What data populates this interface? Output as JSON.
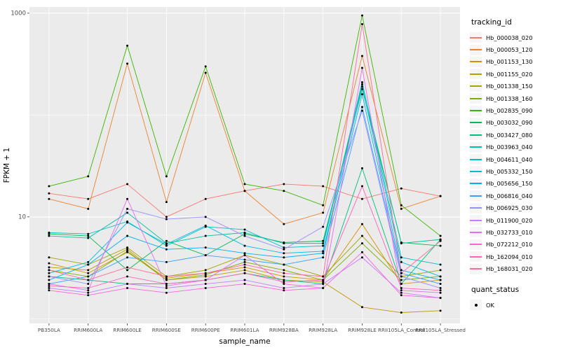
{
  "figure": {
    "background": "#FFFFFF",
    "panel_background": "#EBEBEB",
    "grid_color": "#FFFFFF",
    "tick_color": "#333333",
    "tick_label_color": "#4D4D4D"
  },
  "chart_data": {
    "type": "line",
    "title": "",
    "xlabel": "sample_name",
    "ylabel": "FPKM + 1",
    "y_scale": "log10",
    "ylim": [
      0.9,
      1150
    ],
    "y_ticks": [
      10,
      1000
    ],
    "y_tick_labels": [
      "10",
      "1000"
    ],
    "y_minor_ticks": [
      1,
      100
    ],
    "grid": true,
    "legend_title": "tracking_id",
    "legend_position": "right",
    "point_color": "#000000",
    "categories": [
      "PB350LA",
      "RRIM600LA",
      "RRIM600LE",
      "RRIM600SE",
      "RRIM600PE",
      "RRIM601LA",
      "RRIM928BA",
      "RRIM928LA",
      "RRIM928LE",
      "RRII105LA_Control",
      "RRII105LA_Stressed"
    ],
    "series": [
      {
        "name": "Hb_000038_020",
        "color": "#F8766D",
        "values": [
          17,
          15,
          21,
          10,
          15,
          18,
          21,
          20,
          15,
          19,
          16
        ]
      },
      {
        "name": "Hb_000053_120",
        "color": "#EA8331",
        "values": [
          15,
          12,
          320,
          14,
          260,
          18,
          8.5,
          11,
          380,
          12,
          16
        ]
      },
      {
        "name": "Hb_001153_130",
        "color": "#D89000",
        "values": [
          3.5,
          2.8,
          4.5,
          2.5,
          2.8,
          3.2,
          2.6,
          2.4,
          8.5,
          2.2,
          2.4
        ]
      },
      {
        "name": "Hb_001155_020",
        "color": "#C09B00",
        "values": [
          3.2,
          3.0,
          4.8,
          2.4,
          2.6,
          3.0,
          2.4,
          2.3,
          1.3,
          1.15,
          1.2
        ]
      },
      {
        "name": "Hb_001338_150",
        "color": "#A3A500",
        "values": [
          4.0,
          3.4,
          5.0,
          2.6,
          3.0,
          4.2,
          3.4,
          2.6,
          6.5,
          2.6,
          3.0
        ]
      },
      {
        "name": "Hb_001338_160",
        "color": "#7CAE00",
        "values": [
          3.0,
          2.6,
          4.6,
          2.4,
          2.7,
          3.6,
          3.0,
          2.4,
          5.5,
          2.4,
          2.6
        ]
      },
      {
        "name": "Hb_002835_090",
        "color": "#39B600",
        "values": [
          20,
          25,
          480,
          25,
          300,
          21,
          18,
          13,
          950,
          13,
          6.5
        ]
      },
      {
        "name": "Hb_003032_090",
        "color": "#00BB4E",
        "values": [
          6.8,
          6.5,
          3.0,
          5.8,
          4.2,
          6.8,
          5.6,
          5.8,
          180,
          5.6,
          5.2
        ]
      },
      {
        "name": "Hb_003427_080",
        "color": "#00BF7D",
        "values": [
          2.6,
          2.4,
          2.2,
          2.2,
          2.4,
          2.8,
          2.4,
          2.2,
          30,
          2.2,
          6.0
        ]
      },
      {
        "name": "Hb_003963_040",
        "color": "#00C1A3",
        "values": [
          6.5,
          6.2,
          11,
          5.5,
          6.5,
          7.0,
          5.5,
          5.5,
          200,
          5.5,
          6.0
        ]
      },
      {
        "name": "Hb_004611_040",
        "color": "#00BFC4",
        "values": [
          7.0,
          6.8,
          9.0,
          5.2,
          8.0,
          7.5,
          5.0,
          5.2,
          210,
          4.0,
          3.4
        ]
      },
      {
        "name": "Hb_005332_150",
        "color": "#00BAE0",
        "values": [
          2.8,
          3.6,
          8.8,
          5.4,
          8.2,
          5.2,
          4.4,
          4.6,
          190,
          3.6,
          2.6
        ]
      },
      {
        "name": "Hb_005656_150",
        "color": "#00B0F6",
        "values": [
          2.4,
          3.4,
          6.5,
          4.8,
          5.0,
          4.4,
          4.0,
          4.4,
          160,
          3.0,
          2.4
        ]
      },
      {
        "name": "Hb_006816_040",
        "color": "#35A2FF",
        "values": [
          2.2,
          2.6,
          4.0,
          3.6,
          4.2,
          3.8,
          3.4,
          4.0,
          120,
          2.8,
          2.2
        ]
      },
      {
        "name": "Hb_006925_030",
        "color": "#9590FF",
        "values": [
          2.6,
          2.2,
          12,
          9.5,
          10,
          6.5,
          4.8,
          8.0,
          110,
          2.6,
          2.0
        ]
      },
      {
        "name": "Hb_011900_020",
        "color": "#C77CFF",
        "values": [
          2.0,
          1.8,
          2.2,
          2.0,
          2.2,
          2.4,
          2.0,
          2.2,
          4.0,
          1.8,
          1.6
        ]
      },
      {
        "name": "Hb_032733_010",
        "color": "#E76BF3",
        "values": [
          2.2,
          1.9,
          15,
          2.1,
          2.4,
          4.2,
          2.2,
          2.0,
          290,
          1.9,
          1.8
        ]
      },
      {
        "name": "Hb_072212_010",
        "color": "#FA62DB",
        "values": [
          1.9,
          1.7,
          2.0,
          1.8,
          2.0,
          2.2,
          1.9,
          2.0,
          4.5,
          1.7,
          1.6
        ]
      },
      {
        "name": "Hb_162094_010",
        "color": "#FF62BC",
        "values": [
          2.1,
          2.0,
          2.6,
          2.2,
          2.4,
          2.8,
          2.3,
          2.4,
          20,
          2.0,
          1.9
        ]
      },
      {
        "name": "Hb_168031_020",
        "color": "#FF6A98",
        "values": [
          3.0,
          2.4,
          3.2,
          2.6,
          2.8,
          3.4,
          2.8,
          2.6,
          780,
          2.8,
          5.8
        ]
      }
    ],
    "quant_legend": {
      "title": "quant_status",
      "items": [
        {
          "label": "OK",
          "marker": "point",
          "color": "#000000"
        }
      ]
    }
  }
}
